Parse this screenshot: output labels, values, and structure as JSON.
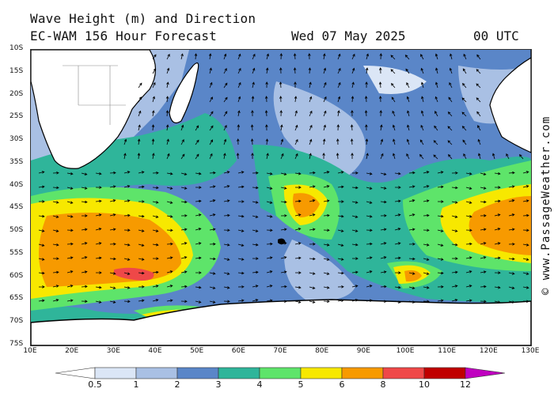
{
  "header": {
    "title": "Wave Height (m) and Direction",
    "model_line": "EC-WAM 156 Hour Forecast",
    "date": "Wed 07 May 2025",
    "time": "00 UTC"
  },
  "credit": "© www.PassageWeather.com",
  "axes": {
    "latitudes": [
      "10S",
      "15S",
      "20S",
      "25S",
      "30S",
      "35S",
      "40S",
      "45S",
      "50S",
      "55S",
      "60S",
      "65S",
      "70S",
      "75S"
    ],
    "longitudes": [
      "10E",
      "20E",
      "30E",
      "40E",
      "50E",
      "60E",
      "70E",
      "80E",
      "90E",
      "100E",
      "110E",
      "120E",
      "130E"
    ]
  },
  "legend": {
    "labels": [
      "0.5",
      "1",
      "2",
      "3",
      "4",
      "5",
      "6",
      "8",
      "10",
      "12"
    ],
    "colors": [
      "#ffffff",
      "#dbe6f6",
      "#a9c0e4",
      "#5a86c8",
      "#2fb59a",
      "#5ee46a",
      "#f7e800",
      "#f79a00",
      "#ef4848",
      "#c00000",
      "#c000c0"
    ]
  },
  "palette": {
    "sea_background": "#5a86c8",
    "land": "#ffffff",
    "coast": "#000000"
  }
}
